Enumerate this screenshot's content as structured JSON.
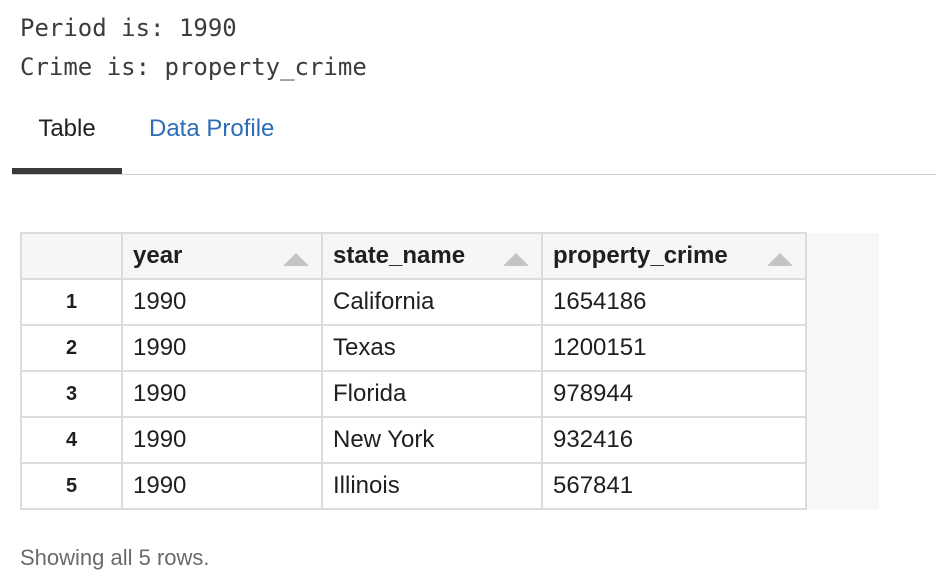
{
  "output": {
    "period_line": "Period is: 1990",
    "crime_line": "Crime is: property_crime"
  },
  "tabs": [
    {
      "label": "Table",
      "active": true
    },
    {
      "label": "Data Profile",
      "active": false
    }
  ],
  "table": {
    "columns": [
      "year",
      "state_name",
      "property_crime"
    ],
    "rows": [
      {
        "index": "1",
        "year": "1990",
        "state_name": "California",
        "property_crime": "1654186"
      },
      {
        "index": "2",
        "year": "1990",
        "state_name": "Texas",
        "property_crime": "1200151"
      },
      {
        "index": "3",
        "year": "1990",
        "state_name": "Florida",
        "property_crime": "978944"
      },
      {
        "index": "4",
        "year": "1990",
        "state_name": "New York",
        "property_crime": "932416"
      },
      {
        "index": "5",
        "year": "1990",
        "state_name": "Illinois",
        "property_crime": "567841"
      }
    ]
  },
  "footer": {
    "text": "Showing all 5 rows."
  },
  "colors": {
    "accent_link": "#2d6db5",
    "active_tab_indicator": "#3a3a3a",
    "header_bg": "#f6f6f6"
  },
  "icons": {
    "sort": "sort-ascending-icon"
  }
}
